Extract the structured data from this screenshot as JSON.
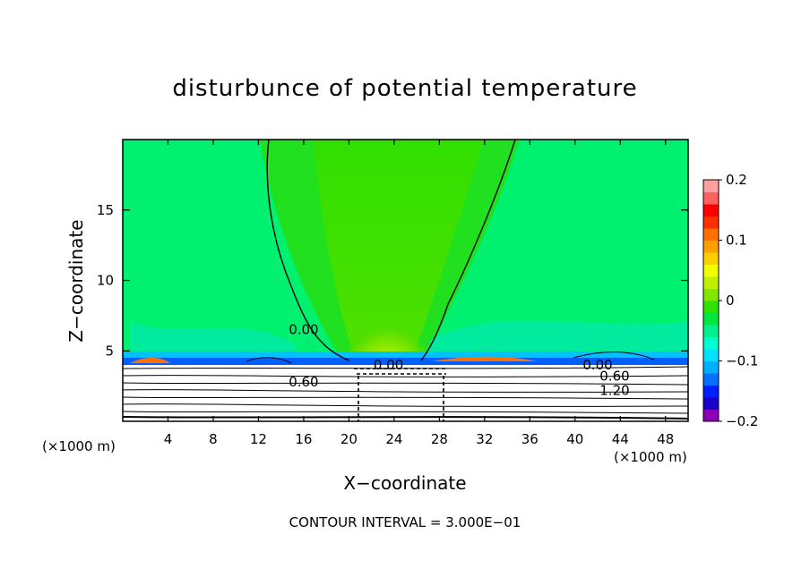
{
  "chart_data": {
    "type": "heatmap",
    "title": "disturbunce of potential temperature",
    "xlabel": "X−coordinate",
    "ylabel": "Z−coordinate",
    "x_unit_label": "(×1000 m)",
    "x_unit_label_right": "(×1000 m)",
    "xlim": [
      0,
      50
    ],
    "ylim": [
      0,
      20
    ],
    "x_ticks": [
      4,
      8,
      12,
      16,
      20,
      24,
      28,
      32,
      36,
      40,
      44,
      48
    ],
    "y_ticks": [
      5,
      10,
      15
    ],
    "colorbar": {
      "range": [
        -0.2,
        0.2
      ],
      "tick_labels": [
        "0.2",
        "0.1",
        "0",
        "−0.1",
        "−0.2"
      ],
      "tick_values": [
        0.2,
        0.1,
        0,
        -0.1,
        -0.2
      ],
      "colors": [
        "#8b00b8",
        "#1a00c8",
        "#0020ff",
        "#0070ff",
        "#00b0ff",
        "#00e0ff",
        "#00ffd0",
        "#00f090",
        "#00e840",
        "#30e000",
        "#80e800",
        "#c0f000",
        "#f0ff00",
        "#ffd000",
        "#ffa000",
        "#ff7000",
        "#ff3000",
        "#ff0000",
        "#ff6060",
        "#ffa0a0"
      ]
    },
    "contour_labels": [
      {
        "text": "0.00",
        "x": 16.0,
        "z": 6.5
      },
      {
        "text": "0.00",
        "x": 42.0,
        "z": 4.0
      },
      {
        "text": "0.60",
        "x": 43.5,
        "z": 3.2
      },
      {
        "text": "1.20",
        "x": 43.5,
        "z": 2.2
      },
      {
        "text": "0.00",
        "x": 23.5,
        "z": 4.0
      },
      {
        "text": "0.60",
        "x": 16.0,
        "z": 2.8
      }
    ],
    "contour_interval_text": "CONTOUR INTERVAL = 3.000E−01"
  }
}
